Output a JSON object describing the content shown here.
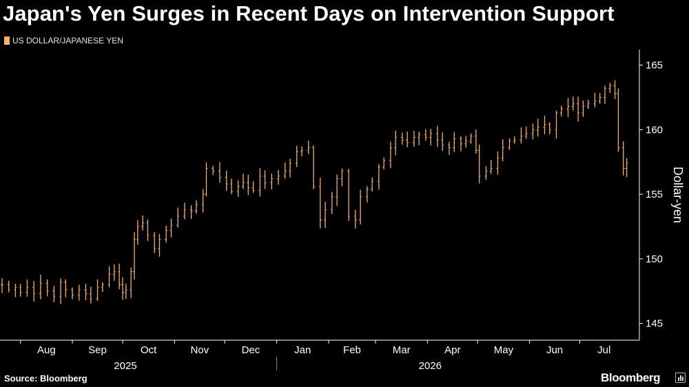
{
  "title": "Japan's Yen Surges in Recent Days on Intervention Support",
  "legend": {
    "label": "US DOLLAR/JAPANESE YEN",
    "color": "#f2b272"
  },
  "footer": {
    "source": "Source: Bloomberg",
    "brand": "Bloomberg"
  },
  "chart_data": {
    "type": "candlestick",
    "title": "Japan's Yen Surges in Recent Days on Intervention Support",
    "series_name": "US DOLLAR/JAPANESE YEN",
    "ylabel": "Dollar-yen",
    "ylim": [
      143.7,
      166.2
    ],
    "yticks": [
      145,
      150,
      155,
      160,
      165
    ],
    "xlim": [
      "2025-07-21",
      "2026-07-30"
    ],
    "grid": false,
    "colors": {
      "bars": "#f2b272",
      "axis": "#ffffff"
    },
    "x_ticks": [
      {
        "label": "Aug",
        "date": "2025-08-01"
      },
      {
        "label": "Sep",
        "date": "2025-09-01"
      },
      {
        "label": "Oct",
        "date": "2025-10-01"
      },
      {
        "label": "Nov",
        "date": "2025-11-01"
      },
      {
        "label": "Dec",
        "date": "2025-12-01"
      },
      {
        "label": "Jan",
        "date": "2026-01-01"
      },
      {
        "label": "Feb",
        "date": "2026-02-01"
      },
      {
        "label": "Mar",
        "date": "2026-03-01"
      },
      {
        "label": "Apr",
        "date": "2026-04-01"
      },
      {
        "label": "May",
        "date": "2026-05-01"
      },
      {
        "label": "Jun",
        "date": "2026-06-01"
      },
      {
        "label": "Jul",
        "date": "2026-07-01"
      }
    ],
    "year_labels": [
      {
        "label": "2025",
        "date": "2025-10-01"
      },
      {
        "label": "2026",
        "date": "2026-04-01"
      }
    ],
    "year_divider": "2026-01-01",
    "points": [
      [
        "2025-07-21",
        148.0
      ],
      [
        "2025-07-25",
        147.6
      ],
      [
        "2025-07-29",
        147.8
      ],
      [
        "2025-08-01",
        147.4
      ],
      [
        "2025-08-05",
        147.8
      ],
      [
        "2025-08-09",
        147.3
      ],
      [
        "2025-08-13",
        148.1
      ],
      [
        "2025-08-17",
        147.5
      ],
      [
        "2025-08-21",
        147.1
      ],
      [
        "2025-08-25",
        148.2
      ],
      [
        "2025-08-28",
        147.6
      ],
      [
        "2025-09-01",
        147.2
      ],
      [
        "2025-09-05",
        147.6
      ],
      [
        "2025-09-09",
        147.3
      ],
      [
        "2025-09-12",
        146.9
      ],
      [
        "2025-09-16",
        147.8
      ],
      [
        "2025-09-19",
        148.0
      ],
      [
        "2025-09-23",
        148.8
      ],
      [
        "2025-09-26",
        149.0
      ],
      [
        "2025-09-29",
        148.0
      ],
      [
        "2025-10-01",
        147.4
      ],
      [
        "2025-10-03",
        147.6
      ],
      [
        "2025-10-06",
        149.0
      ],
      [
        "2025-10-08",
        151.5
      ],
      [
        "2025-10-10",
        152.5
      ],
      [
        "2025-10-13",
        152.8
      ],
      [
        "2025-10-16",
        151.8
      ],
      [
        "2025-10-20",
        150.8
      ],
      [
        "2025-10-23",
        151.5
      ],
      [
        "2025-10-27",
        152.2
      ],
      [
        "2025-10-30",
        152.6
      ],
      [
        "2025-11-03",
        153.3
      ],
      [
        "2025-11-07",
        153.8
      ],
      [
        "2025-11-11",
        153.7
      ],
      [
        "2025-11-14",
        154.2
      ],
      [
        "2025-11-18",
        155.0
      ],
      [
        "2025-11-20",
        157.0
      ],
      [
        "2025-11-24",
        156.8
      ],
      [
        "2025-11-28",
        156.3
      ],
      [
        "2025-12-02",
        155.8
      ],
      [
        "2025-12-05",
        155.2
      ],
      [
        "2025-12-09",
        155.6
      ],
      [
        "2025-12-12",
        155.9
      ],
      [
        "2025-12-15",
        155.5
      ],
      [
        "2025-12-18",
        155.3
      ],
      [
        "2025-12-22",
        156.4
      ],
      [
        "2025-12-25",
        155.9
      ],
      [
        "2025-12-29",
        156.2
      ],
      [
        "2026-01-02",
        156.4
      ],
      [
        "2026-01-06",
        156.8
      ],
      [
        "2026-01-09",
        157.4
      ],
      [
        "2026-01-13",
        158.3
      ],
      [
        "2026-01-16",
        158.4
      ],
      [
        "2026-01-20",
        158.6
      ],
      [
        "2026-01-23",
        155.6
      ],
      [
        "2026-01-27",
        153.0
      ],
      [
        "2026-01-30",
        153.8
      ],
      [
        "2026-02-03",
        154.8
      ],
      [
        "2026-02-06",
        156.2
      ],
      [
        "2026-02-09",
        156.8
      ],
      [
        "2026-02-13",
        153.3
      ],
      [
        "2026-02-17",
        153.0
      ],
      [
        "2026-02-20",
        154.8
      ],
      [
        "2026-02-24",
        155.4
      ],
      [
        "2026-02-27",
        156.0
      ],
      [
        "2026-03-03",
        157.1
      ],
      [
        "2026-03-06",
        157.6
      ],
      [
        "2026-03-10",
        158.6
      ],
      [
        "2026-03-13",
        159.4
      ],
      [
        "2026-03-17",
        159.2
      ],
      [
        "2026-03-20",
        159.0
      ],
      [
        "2026-03-24",
        159.4
      ],
      [
        "2026-03-27",
        159.6
      ],
      [
        "2026-03-31",
        159.4
      ],
      [
        "2026-04-03",
        159.7
      ],
      [
        "2026-04-07",
        159.2
      ],
      [
        "2026-04-10",
        158.8
      ],
      [
        "2026-04-14",
        158.6
      ],
      [
        "2026-04-17",
        159.3
      ],
      [
        "2026-04-21",
        158.9
      ],
      [
        "2026-04-24",
        159.1
      ],
      [
        "2026-04-27",
        159.5
      ],
      [
        "2026-04-30",
        158.4
      ],
      [
        "2026-05-02",
        156.4
      ],
      [
        "2026-05-06",
        156.8
      ],
      [
        "2026-05-09",
        157.0
      ],
      [
        "2026-05-13",
        157.8
      ],
      [
        "2026-05-16",
        158.6
      ],
      [
        "2026-05-20",
        159.1
      ],
      [
        "2026-05-23",
        159.2
      ],
      [
        "2026-05-27",
        159.5
      ],
      [
        "2026-05-30",
        159.7
      ],
      [
        "2026-06-03",
        160.0
      ],
      [
        "2026-06-06",
        160.2
      ],
      [
        "2026-06-10",
        160.4
      ],
      [
        "2026-06-13",
        160.0
      ],
      [
        "2026-06-17",
        161.3
      ],
      [
        "2026-06-20",
        161.6
      ],
      [
        "2026-06-24",
        161.8
      ],
      [
        "2026-06-27",
        162.0
      ],
      [
        "2026-06-30",
        161.3
      ],
      [
        "2026-07-03",
        161.8
      ],
      [
        "2026-07-06",
        162.0
      ],
      [
        "2026-07-10",
        162.2
      ],
      [
        "2026-07-13",
        162.5
      ],
      [
        "2026-07-16",
        163.2
      ],
      [
        "2026-07-19",
        163.4
      ],
      [
        "2026-07-22",
        162.8
      ],
      [
        "2026-07-24",
        158.6
      ],
      [
        "2026-07-27",
        157.0
      ],
      [
        "2026-07-29",
        157.4
      ]
    ]
  }
}
